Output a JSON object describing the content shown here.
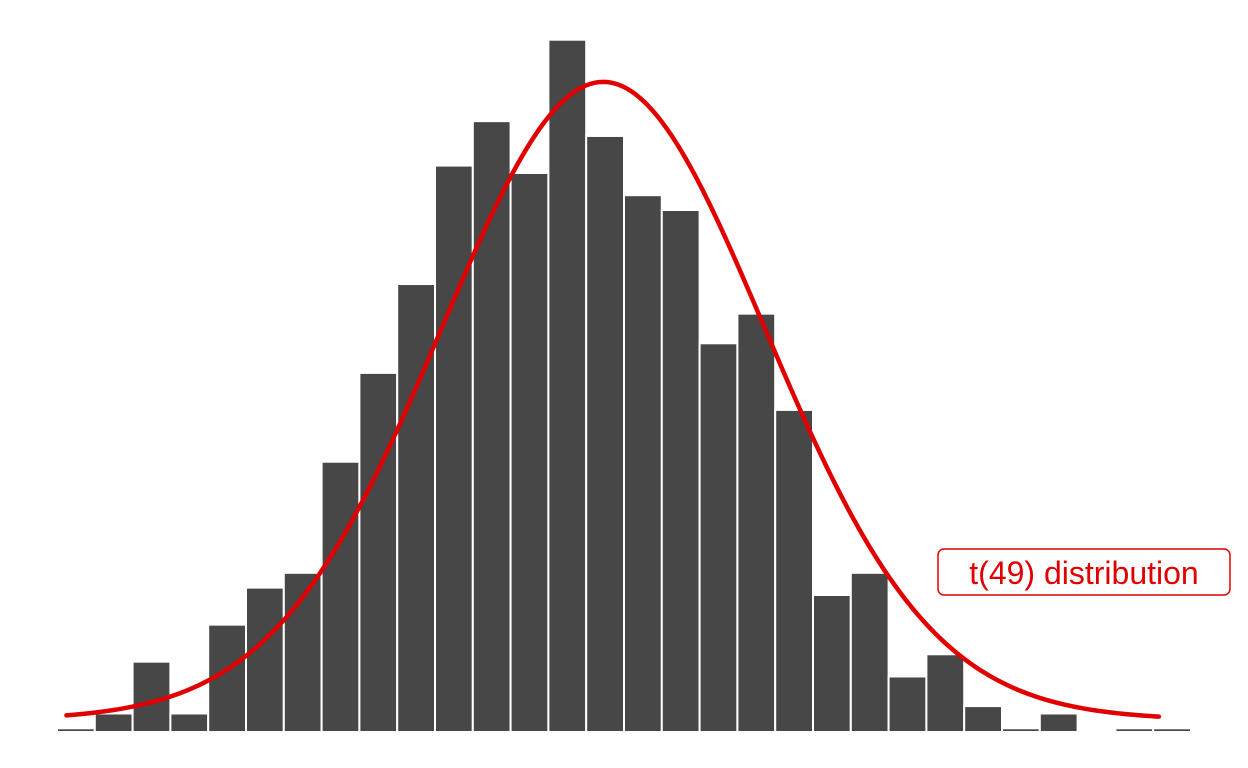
{
  "chart_data": {
    "type": "bar",
    "title": "",
    "xlabel": "",
    "ylabel": "",
    "axes_visible": false,
    "grid": false,
    "legend": "none",
    "ylim": [
      0,
      94
    ],
    "bar_color": "#474747",
    "bar_edge_color": "#ffffff",
    "bins": [
      {
        "index": 1,
        "count": 0.5
      },
      {
        "index": 2,
        "count": 2.5
      },
      {
        "index": 3,
        "count": 9.5
      },
      {
        "index": 4,
        "count": 2.5
      },
      {
        "index": 5,
        "count": 14.5
      },
      {
        "index": 6,
        "count": 19.5
      },
      {
        "index": 7,
        "count": 21.5
      },
      {
        "index": 8,
        "count": 36.5
      },
      {
        "index": 9,
        "count": 48.5
      },
      {
        "index": 10,
        "count": 60.5
      },
      {
        "index": 11,
        "count": 76.5
      },
      {
        "index": 12,
        "count": 82.5
      },
      {
        "index": 13,
        "count": 75.5
      },
      {
        "index": 14,
        "count": 93.5
      },
      {
        "index": 15,
        "count": 80.5
      },
      {
        "index": 16,
        "count": 72.5
      },
      {
        "index": 17,
        "count": 70.5
      },
      {
        "index": 18,
        "count": 52.5
      },
      {
        "index": 19,
        "count": 56.5
      },
      {
        "index": 20,
        "count": 43.5
      },
      {
        "index": 21,
        "count": 18.5
      },
      {
        "index": 22,
        "count": 21.5
      },
      {
        "index": 23,
        "count": 7.5
      },
      {
        "index": 24,
        "count": 10.5
      },
      {
        "index": 25,
        "count": 3.5
      },
      {
        "index": 26,
        "count": 0.5
      },
      {
        "index": 27,
        "count": 2.5
      },
      {
        "index": 28,
        "count": 0
      },
      {
        "index": 29,
        "count": 0.5
      },
      {
        "index": 30,
        "count": 0.5
      }
    ],
    "overlay_curve": {
      "type": "density",
      "label": "t(49) distribution",
      "color": "#e00000",
      "df": 49,
      "peak_bin": 14.45,
      "sd_bins": 4.35,
      "peak_count": 87.5
    }
  }
}
